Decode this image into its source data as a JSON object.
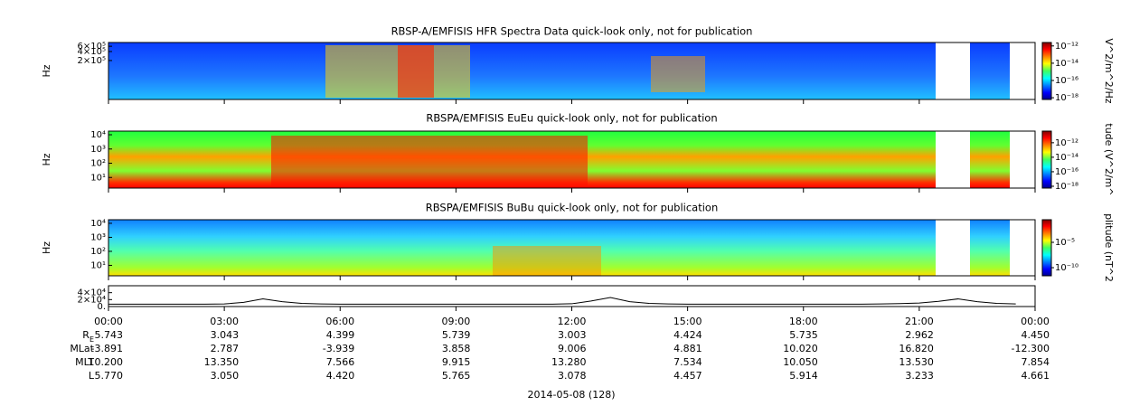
{
  "chart_data": [
    {
      "type": "spectrogram",
      "title": "RBSP-A/EMFISIS  HFR Spectra Data quick-look only, not for publication",
      "ylabel": "Hz",
      "log_y": true,
      "ylim": [
        10000,
        800000
      ],
      "yticks": [
        {
          "value": 200000,
          "label": "2×10⁵"
        },
        {
          "value": 400000,
          "label": "4×10⁵"
        },
        {
          "value": 600000,
          "label": "6×10⁵"
        }
      ],
      "colorbar": {
        "label": "V^2/m^2/Hz",
        "log": true,
        "clim": [
          6.3e-19,
          2.5e-12
        ],
        "ticks": [
          {
            "value": 1e-12,
            "label": "10⁻¹²"
          },
          {
            "value": 1e-14,
            "label": "10⁻¹⁴"
          },
          {
            "value": 1e-16,
            "label": "10⁻¹⁶"
          },
          {
            "value": 1e-18,
            "label": "10⁻¹⁸"
          }
        ]
      }
    },
    {
      "type": "spectrogram",
      "title": "RBSPA/EMFISIS  EuEu quick-look only, not for publication",
      "ylabel": "Hz",
      "log_y": true,
      "ylim": [
        1.8,
        18000
      ],
      "yticks": [
        {
          "value": 10,
          "label": "10¹"
        },
        {
          "value": 100,
          "label": "10²"
        },
        {
          "value": 1000,
          "label": "10³"
        },
        {
          "value": 10000,
          "label": "10⁴"
        }
      ],
      "colorbar": {
        "label": "tude (V^2/m^",
        "log": true,
        "clim": [
          5.6e-19,
          4e-11
        ],
        "ticks": [
          {
            "value": 1e-12,
            "label": "10⁻¹²"
          },
          {
            "value": 1e-14,
            "label": "10⁻¹⁴"
          },
          {
            "value": 1e-16,
            "label": "10⁻¹⁶"
          },
          {
            "value": 1e-18,
            "label": "10⁻¹⁸"
          }
        ]
      }
    },
    {
      "type": "spectrogram",
      "title": "RBSPA/EMFISIS  BuBu quick-look only, not for publication",
      "ylabel": "Hz",
      "log_y": true,
      "ylim": [
        1.8,
        18000
      ],
      "yticks": [
        {
          "value": 10,
          "label": "10¹"
        },
        {
          "value": 100,
          "label": "10²"
        },
        {
          "value": 1000,
          "label": "10³"
        },
        {
          "value": 10000,
          "label": "10⁴"
        }
      ],
      "colorbar": {
        "label": "plitude (nT^2",
        "log": true,
        "clim": [
          2.5e-12,
          0.29
        ],
        "ticks": [
          {
            "value": 1e-05,
            "label": "10⁻⁵"
          },
          {
            "value": 1e-10,
            "label": "10⁻¹⁰"
          }
        ]
      }
    },
    {
      "type": "line",
      "color": "#000000",
      "x": [
        0,
        0.5,
        1,
        1.5,
        2,
        2.5,
        3,
        3.5,
        4,
        4.5,
        5,
        5.5,
        6,
        6.5,
        7,
        7.5,
        8,
        8.5,
        9,
        9.5,
        10,
        10.5,
        11,
        11.5,
        12,
        12.5,
        13,
        13.5,
        14,
        14.5,
        15,
        15.5,
        16,
        16.5,
        17,
        17.5,
        18,
        18.5,
        19,
        19.5,
        20,
        20.5,
        21,
        21.5,
        22,
        22.5,
        23,
        23.5
      ],
      "values": [
        7000,
        7000,
        7000,
        7000,
        7000,
        7000,
        7500,
        12000,
        22000,
        14000,
        9000,
        7500,
        7000,
        7000,
        7000,
        7000,
        7000,
        7000,
        7000,
        7000,
        7000,
        7000,
        7000,
        7000,
        8000,
        16000,
        26000,
        14000,
        9000,
        7500,
        7000,
        7000,
        7000,
        7000,
        7000,
        7000,
        7000,
        7000,
        7000,
        7000,
        7500,
        8500,
        10000,
        15000,
        22000,
        14000,
        9000,
        7500
      ],
      "ylim": [
        0,
        60000
      ],
      "yticks": [
        {
          "value": 0,
          "label": "0."
        },
        {
          "value": 20000,
          "label": "2×10⁴"
        },
        {
          "value": 40000,
          "label": "4×10⁴"
        }
      ],
      "xlim": [
        0,
        24
      ],
      "xticks": [
        {
          "value": 0,
          "label": "00:00"
        },
        {
          "value": 3,
          "label": "03:00"
        },
        {
          "value": 6,
          "label": "06:00"
        },
        {
          "value": 9,
          "label": "09:00"
        },
        {
          "value": 12,
          "label": "12:00"
        },
        {
          "value": 15,
          "label": "15:00"
        },
        {
          "value": 18,
          "label": "18:00"
        },
        {
          "value": 21,
          "label": "21:00"
        },
        {
          "value": 24,
          "label": "00:00"
        }
      ]
    }
  ],
  "ephemeris": [
    {
      "label": "R",
      "subscript": "E",
      "values": [
        "5.743",
        "3.043",
        "4.399",
        "5.739",
        "3.003",
        "4.424",
        "5.735",
        "2.962",
        "4.450"
      ]
    },
    {
      "label": "MLat",
      "values": [
        "-3.891",
        "2.787",
        "-3.939",
        "3.858",
        "9.006",
        "4.881",
        "10.020",
        "16.820",
        "-12.300"
      ]
    },
    {
      "label": "MLT",
      "values": [
        "10.200",
        "13.350",
        "7.566",
        "9.915",
        "13.280",
        "7.534",
        "10.050",
        "13.530",
        "7.854"
      ]
    },
    {
      "label": "L",
      "values": [
        "5.770",
        "3.050",
        "4.420",
        "5.765",
        "3.078",
        "4.457",
        "5.914",
        "3.233",
        "4.661"
      ]
    }
  ],
  "date": "2014-05-08 (128)"
}
